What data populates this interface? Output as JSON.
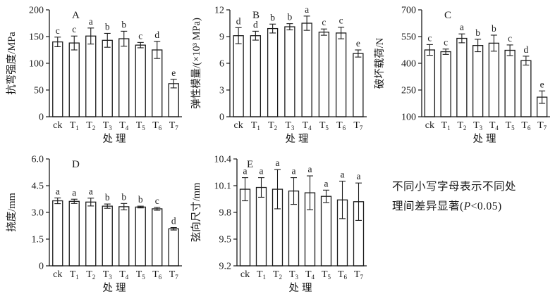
{
  "figure": {
    "colors": {
      "axis": "#1a1a1a",
      "bar_fill": "#ffffff",
      "bar_stroke": "#1a1a1a",
      "letter": "#3a4a6e",
      "text": "#1a1a1a"
    }
  },
  "chart_data": [
    {
      "type": "bar",
      "panel": "A",
      "ylabel": "抗弯强度/MPa",
      "xlabel": "处理",
      "ylim": [
        0,
        200
      ],
      "yticks": [
        "0",
        "50",
        "100",
        "150",
        "200"
      ],
      "categories": [
        "ck",
        "T1",
        "T2",
        "T3",
        "T4",
        "T5",
        "T6",
        "T7"
      ],
      "values": [
        140,
        138,
        151,
        143,
        146,
        134,
        125,
        62
      ],
      "errors": [
        9,
        13,
        15,
        13,
        14,
        5,
        16,
        8
      ],
      "letters": [
        "c",
        "c",
        "a",
        "b",
        "b",
        "c",
        "d",
        "e"
      ],
      "legend": "none",
      "grid": false
    },
    {
      "type": "bar",
      "panel": "B",
      "ylabel": "弹性模量/(×10³ MPa)",
      "xlabel": "处理",
      "ylim": [
        0,
        12
      ],
      "yticks": [
        "0",
        "3",
        "6",
        "9",
        "12"
      ],
      "categories": [
        "ck",
        "T1",
        "T2",
        "T3",
        "T4",
        "T5",
        "T6",
        "T7"
      ],
      "values": [
        9.1,
        9.1,
        9.9,
        10.1,
        10.5,
        9.5,
        9.4,
        7.1
      ],
      "errors": [
        0.9,
        0.5,
        0.5,
        0.35,
        0.8,
        0.35,
        0.65,
        0.4
      ],
      "letters": [
        "d",
        "d",
        "b",
        "b",
        "a",
        "c",
        "c",
        "e"
      ],
      "legend": "none",
      "grid": false
    },
    {
      "type": "bar",
      "panel": "C",
      "ylabel": "破坏载荷/N",
      "xlabel": "处理",
      "ylim": [
        100,
        700
      ],
      "yticks": [
        "100",
        "250",
        "400",
        "550",
        "700"
      ],
      "categories": [
        "ck",
        "T1",
        "T2",
        "T3",
        "T4",
        "T5",
        "T6",
        "T7"
      ],
      "values": [
        475,
        465,
        540,
        500,
        513,
        473,
        415,
        210
      ],
      "errors": [
        30,
        15,
        25,
        35,
        45,
        30,
        25,
        35
      ],
      "letters": [
        "c",
        "c",
        "a",
        "b",
        "b",
        "c",
        "d",
        "e"
      ],
      "legend": "none",
      "grid": false
    },
    {
      "type": "bar",
      "panel": "D",
      "ylabel": "挠度/mm",
      "xlabel": "处理",
      "ylim": [
        0,
        6
      ],
      "yticks": [
        "0",
        "1.5",
        "3.0",
        "4.5",
        "6.0"
      ],
      "categories": [
        "ck",
        "T1",
        "T2",
        "T3",
        "T4",
        "T5",
        "T6",
        "T7"
      ],
      "values": [
        3.65,
        3.62,
        3.58,
        3.35,
        3.32,
        3.3,
        3.2,
        2.08
      ],
      "errors": [
        0.16,
        0.12,
        0.22,
        0.12,
        0.18,
        0.05,
        0.08,
        0.07
      ],
      "letters": [
        "a",
        "a",
        "a",
        "b",
        "b",
        "b",
        "c",
        "d"
      ],
      "legend": "none",
      "grid": false
    },
    {
      "type": "bar",
      "panel": "E",
      "ylabel": "弦向尺寸/mm",
      "xlabel": "处理",
      "ylim": [
        9.2,
        10.4
      ],
      "yticks": [
        "9.2",
        "9.5",
        "9.8",
        "10.1",
        "10.4"
      ],
      "categories": [
        "ck",
        "T1",
        "T2",
        "T3",
        "T4",
        "T5",
        "T6",
        "T7"
      ],
      "values": [
        10.06,
        10.08,
        10.06,
        10.04,
        10.02,
        9.98,
        9.94,
        9.92
      ],
      "errors": [
        0.13,
        0.11,
        0.22,
        0.15,
        0.19,
        0.07,
        0.21,
        0.21
      ],
      "letters": [
        "a",
        "a",
        "a",
        "a",
        "a",
        "a",
        "a",
        "a"
      ],
      "legend": "none",
      "grid": false
    }
  ],
  "note": {
    "line1": "不同小写字母表示不同处",
    "line2_pre": "理间差异显著(",
    "p_symbol": "P",
    "line2_post": "<0.05)"
  }
}
